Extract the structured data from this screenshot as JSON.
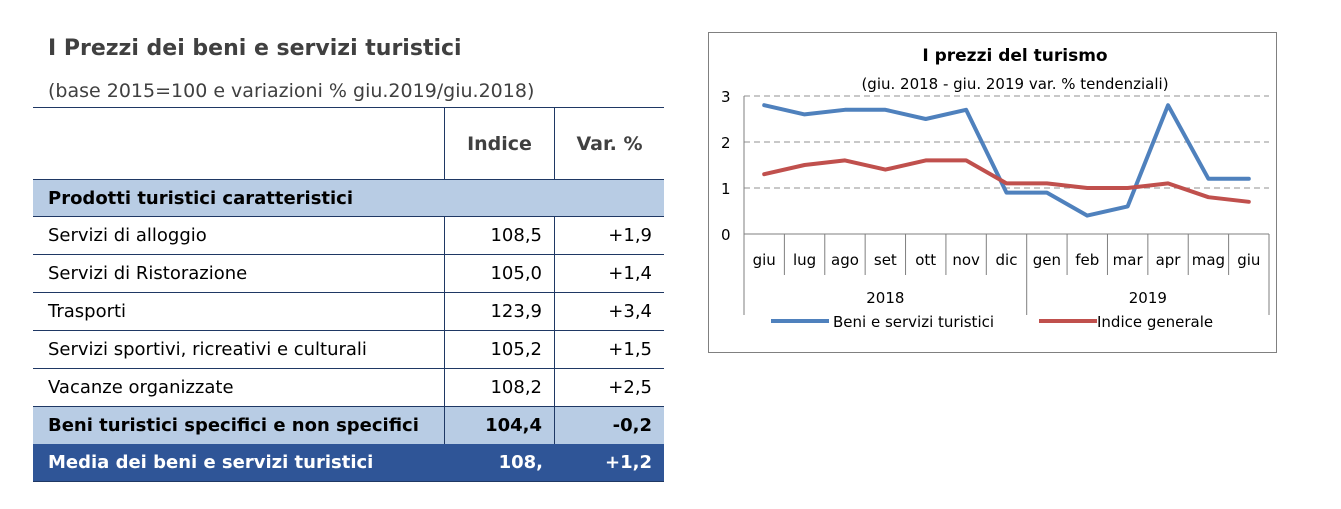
{
  "table": {
    "title": "I Prezzi dei beni e servizi turistici",
    "subtitle": "(base 2015=100 e variazioni % giu.2019/giu.2018)",
    "headers": {
      "col2": "Indice",
      "col3": "Var. %"
    },
    "category": "Prodotti turistici caratteristici",
    "rows": [
      {
        "label": "Servizi di alloggio",
        "index": "108,5",
        "var": "+1,9"
      },
      {
        "label": "Servizi di Ristorazione",
        "index": "105,0",
        "var": "+1,4"
      },
      {
        "label": "Trasporti",
        "index": "123,9",
        "var": "+3,4"
      },
      {
        "label": "Servizi sportivi, ricreativi e culturali",
        "index": "105,2",
        "var": "+1,5"
      },
      {
        "label": "Vacanze organizzate",
        "index": "108,2",
        "var": "+2,5"
      }
    ],
    "band_row": {
      "label": "Beni turistici specifici e non specifici",
      "index": "104,4",
      "var": "-0,2"
    },
    "total_row": {
      "label": "Media dei beni e servizi turistici",
      "index": "108,",
      "var": "+1,2"
    },
    "colors": {
      "band": "#b8cce4",
      "total": "#2f5597",
      "rule": "#1f3864"
    }
  },
  "chart_data": {
    "type": "line",
    "title": "I prezzi del turismo",
    "subtitle": "(giu. 2018 - giu. 2019 var. % tendenziali)",
    "categories": [
      "giu",
      "lug",
      "ago",
      "set",
      "ott",
      "nov",
      "dic",
      "gen",
      "feb",
      "mar",
      "apr",
      "mag",
      "giu"
    ],
    "year_groups": [
      {
        "label": "2018",
        "span": 7
      },
      {
        "label": "2019",
        "span": 6
      }
    ],
    "y_ticks": [
      "0",
      "1",
      "2",
      "3"
    ],
    "ylim": [
      0,
      3
    ],
    "grid": true,
    "legend_position": "bottom",
    "series": [
      {
        "name": "Beni e servizi turistici",
        "color": "#4f81bd",
        "values": [
          2.8,
          2.6,
          2.7,
          2.7,
          2.5,
          2.7,
          0.9,
          0.9,
          0.4,
          0.6,
          2.8,
          1.2,
          1.2
        ]
      },
      {
        "name": "Indice generale",
        "color": "#c0504d",
        "values": [
          1.3,
          1.5,
          1.6,
          1.4,
          1.6,
          1.6,
          1.1,
          1.1,
          1.0,
          1.0,
          1.1,
          0.8,
          0.7
        ]
      }
    ]
  }
}
